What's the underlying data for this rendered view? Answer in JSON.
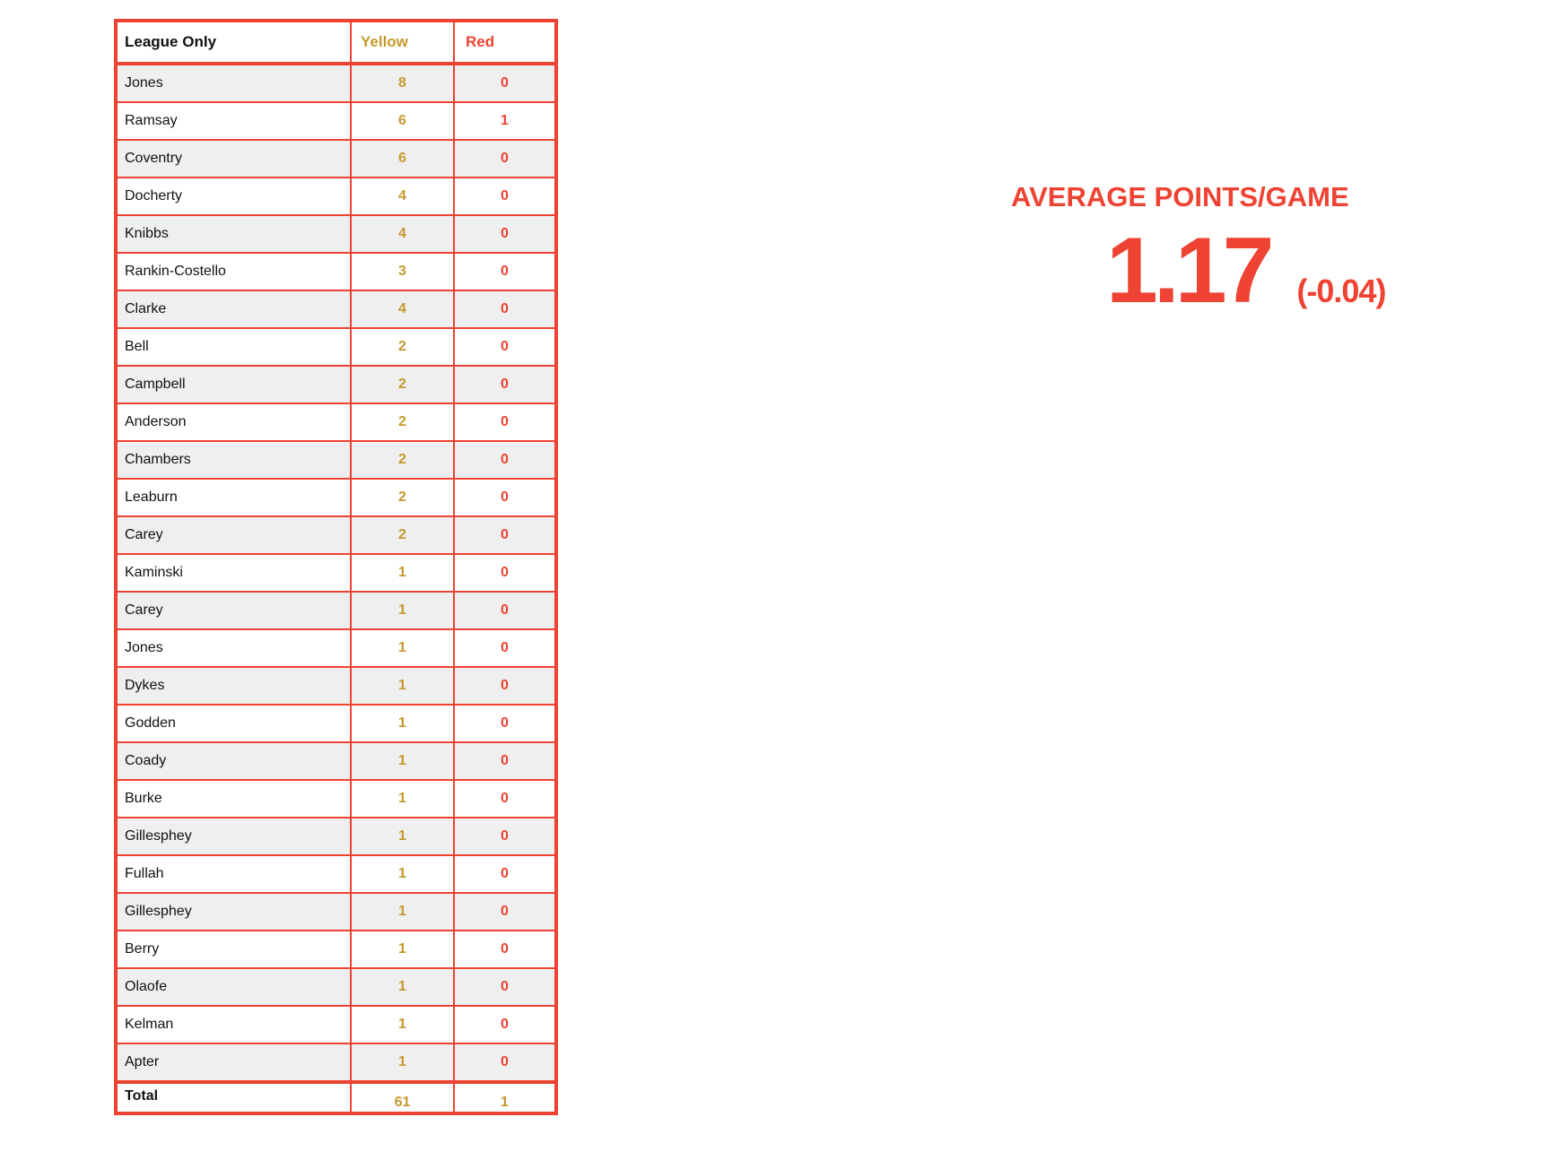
{
  "colors": {
    "accent_red": "#ee4333",
    "gold": "#c5992d",
    "stripe_gray": "#efefef",
    "background": "#ffffff",
    "text_black": "#111111"
  },
  "table": {
    "header": {
      "name": "League Only",
      "yellow": "Yellow",
      "red": "Red"
    },
    "rows": [
      {
        "name": "Jones",
        "yellow": "8",
        "red": "0"
      },
      {
        "name": "Ramsay",
        "yellow": "6",
        "red": "1"
      },
      {
        "name": "Coventry",
        "yellow": "6",
        "red": "0"
      },
      {
        "name": "Docherty",
        "yellow": "4",
        "red": "0"
      },
      {
        "name": "Knibbs",
        "yellow": "4",
        "red": "0"
      },
      {
        "name": "Rankin-Costello",
        "yellow": "3",
        "red": "0"
      },
      {
        "name": "Clarke",
        "yellow": "4",
        "red": "0"
      },
      {
        "name": "Bell",
        "yellow": "2",
        "red": "0"
      },
      {
        "name": "Campbell",
        "yellow": "2",
        "red": "0"
      },
      {
        "name": "Anderson",
        "yellow": "2",
        "red": "0"
      },
      {
        "name": "Chambers",
        "yellow": "2",
        "red": "0"
      },
      {
        "name": "Leaburn",
        "yellow": "2",
        "red": "0"
      },
      {
        "name": "Carey",
        "yellow": "2",
        "red": "0"
      },
      {
        "name": "Kaminski",
        "yellow": "1",
        "red": "0"
      },
      {
        "name": "Carey",
        "yellow": "1",
        "red": "0"
      },
      {
        "name": "Jones",
        "yellow": "1",
        "red": "0"
      },
      {
        "name": "Dykes",
        "yellow": "1",
        "red": "0"
      },
      {
        "name": "Godden",
        "yellow": "1",
        "red": "0"
      },
      {
        "name": "Coady",
        "yellow": "1",
        "red": "0"
      },
      {
        "name": "Burke",
        "yellow": "1",
        "red": "0"
      },
      {
        "name": "Gillesphey",
        "yellow": "1",
        "red": "0"
      },
      {
        "name": "Fullah",
        "yellow": "1",
        "red": "0"
      },
      {
        "name": "Gillesphey",
        "yellow": "1",
        "red": "0"
      },
      {
        "name": "Berry",
        "yellow": "1",
        "red": "0"
      },
      {
        "name": "Olaofe",
        "yellow": "1",
        "red": "0"
      },
      {
        "name": "Kelman",
        "yellow": "1",
        "red": "0"
      },
      {
        "name": "Apter",
        "yellow": "1",
        "red": "0"
      }
    ],
    "total": {
      "label": "Total",
      "yellow": "61",
      "red": "1"
    }
  },
  "kpi": {
    "title": "AVERAGE POINTS/GAME",
    "value": "1.17",
    "delta": "(-0.04)"
  },
  "chart_data": {
    "type": "table",
    "title": "League Only",
    "columns": [
      "League Only",
      "Yellow",
      "Red"
    ],
    "rows": [
      [
        "Jones",
        8,
        0
      ],
      [
        "Ramsay",
        6,
        1
      ],
      [
        "Coventry",
        6,
        0
      ],
      [
        "Docherty",
        4,
        0
      ],
      [
        "Knibbs",
        4,
        0
      ],
      [
        "Rankin-Costello",
        3,
        0
      ],
      [
        "Clarke",
        4,
        0
      ],
      [
        "Bell",
        2,
        0
      ],
      [
        "Campbell",
        2,
        0
      ],
      [
        "Anderson",
        2,
        0
      ],
      [
        "Chambers",
        2,
        0
      ],
      [
        "Leaburn",
        2,
        0
      ],
      [
        "Carey",
        2,
        0
      ],
      [
        "Kaminski",
        1,
        0
      ],
      [
        "Carey",
        1,
        0
      ],
      [
        "Jones",
        1,
        0
      ],
      [
        "Dykes",
        1,
        0
      ],
      [
        "Godden",
        1,
        0
      ],
      [
        "Coady",
        1,
        0
      ],
      [
        "Burke",
        1,
        0
      ],
      [
        "Gillesphey",
        1,
        0
      ],
      [
        "Fullah",
        1,
        0
      ],
      [
        "Gillesphey",
        1,
        0
      ],
      [
        "Berry",
        1,
        0
      ],
      [
        "Olaofe",
        1,
        0
      ],
      [
        "Kelman",
        1,
        0
      ],
      [
        "Apter",
        1,
        0
      ]
    ],
    "total": [
      "Total",
      61,
      1
    ],
    "kpi": {
      "label": "AVERAGE POINTS/GAME",
      "value": 1.17,
      "delta": -0.04
    }
  }
}
